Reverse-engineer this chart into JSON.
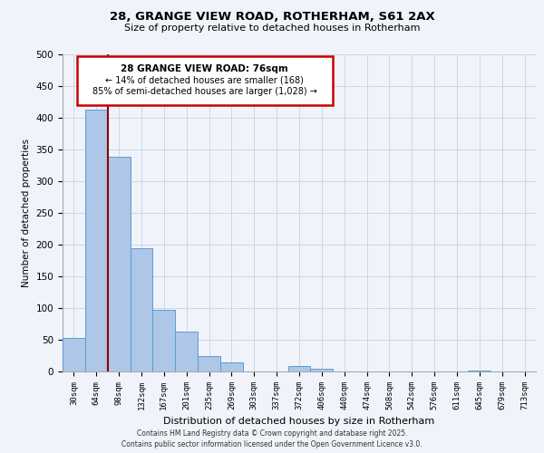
{
  "title": "28, GRANGE VIEW ROAD, ROTHERHAM, S61 2AX",
  "subtitle": "Size of property relative to detached houses in Rotherham",
  "xlabel": "Distribution of detached houses by size in Rotherham",
  "ylabel": "Number of detached properties",
  "bar_labels": [
    "30sqm",
    "64sqm",
    "98sqm",
    "132sqm",
    "167sqm",
    "201sqm",
    "235sqm",
    "269sqm",
    "303sqm",
    "337sqm",
    "372sqm",
    "406sqm",
    "440sqm",
    "474sqm",
    "508sqm",
    "542sqm",
    "576sqm",
    "611sqm",
    "645sqm",
    "679sqm",
    "713sqm"
  ],
  "bar_values": [
    53,
    413,
    338,
    195,
    97,
    63,
    25,
    14,
    0,
    0,
    9,
    4,
    0,
    0,
    0,
    0,
    0,
    0,
    2,
    0,
    0
  ],
  "bar_color": "#aec6e8",
  "bar_edge_color": "#5b9bd5",
  "ylim": [
    0,
    500
  ],
  "yticks": [
    0,
    50,
    100,
    150,
    200,
    250,
    300,
    350,
    400,
    450,
    500
  ],
  "property_line_x": 1.5,
  "property_line_color": "#8b0000",
  "annotation_title": "28 GRANGE VIEW ROAD: 76sqm",
  "annotation_line1": "← 14% of detached houses are smaller (168)",
  "annotation_line2": "85% of semi-detached houses are larger (1,028) →",
  "annotation_box_color": "#ffffff",
  "annotation_box_edge": "#cc0000",
  "footer_line1": "Contains HM Land Registry data © Crown copyright and database right 2025.",
  "footer_line2": "Contains public sector information licensed under the Open Government Licence v3.0.",
  "background_color": "#f0f4fa"
}
